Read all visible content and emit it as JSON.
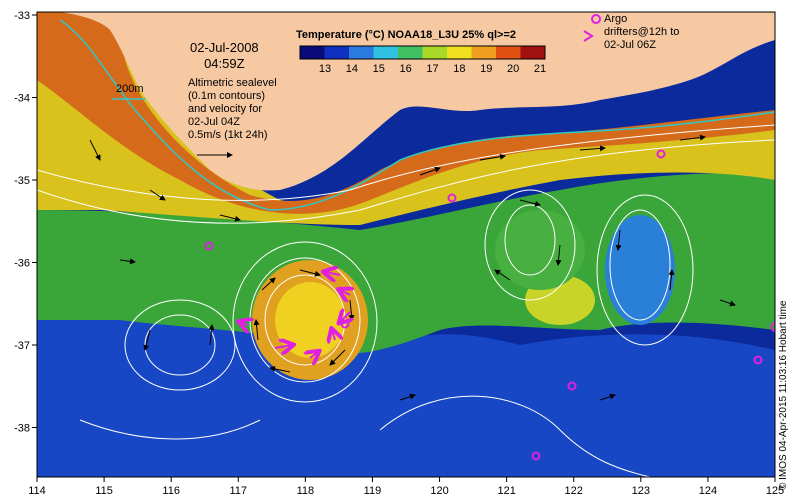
{
  "map": {
    "x_ticks": [
      "114",
      "115",
      "116",
      "117",
      "118",
      "119",
      "120",
      "121",
      "122",
      "123",
      "124",
      "125"
    ],
    "y_ticks": [
      "-33",
      "-34",
      "-35",
      "-36",
      "-37",
      "-38"
    ],
    "colors": {
      "land": "#f6c9a3",
      "warm": "#d46a1a",
      "mid": "#3fae33",
      "cool": "#1e4fc8",
      "deep": "#08208c",
      "contour": "#ffffff",
      "isobath": "#30c8c8",
      "drifter": "#e020e0"
    }
  },
  "date_line1": "02-Jul-2008",
  "date_line2": "04:59Z",
  "isobath_label": "200m",
  "altimetry_text": [
    "Altimetric sealevel",
    "(0.1m contours)",
    "and velocity for",
    "02-Jul 04Z"
  ],
  "velocity_scale_text": "0.5m/s (1kt 24h)",
  "colorbar": {
    "title": "Temperature (°C) NOAA18_L3U 25% ql>=2",
    "ticks": [
      "13",
      "14",
      "15",
      "16",
      "17",
      "18",
      "19",
      "20",
      "21"
    ],
    "colors": [
      "#0a0a7a",
      "#1030c0",
      "#2a7ae0",
      "#30c0e0",
      "#40c060",
      "#a8d828",
      "#f0e020",
      "#f0a020",
      "#e05010",
      "#a01010"
    ]
  },
  "argo_text": [
    "Argo",
    "drifters@12h to",
    "02-Jul 06Z"
  ],
  "credit": "© IMOS 04-Apr-2015 11:03:16 Hobart time"
}
